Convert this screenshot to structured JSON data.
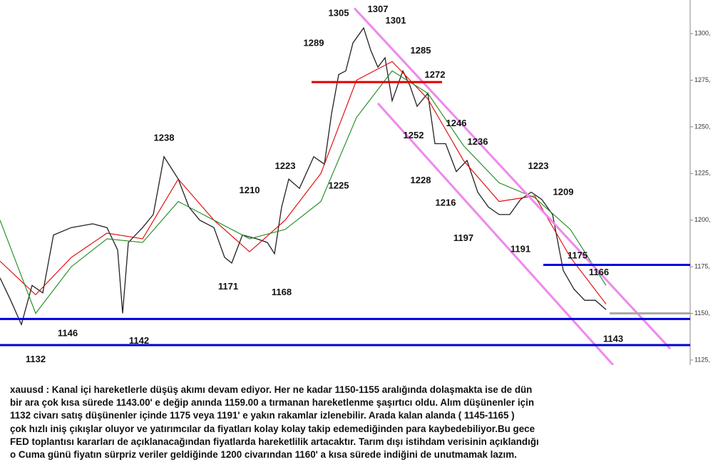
{
  "chart_data": {
    "type": "line",
    "xlim": [
      0,
      193.6
    ],
    "ylim": [
      1122.3,
      1318
    ],
    "yticks": [
      {
        "value": 1125,
        "label": "1125,"
      },
      {
        "value": 1150,
        "label": "1150,"
      },
      {
        "value": 1175,
        "label": "1175,"
      },
      {
        "value": 1200,
        "label": "1200,"
      },
      {
        "value": 1225,
        "label": "1225,"
      },
      {
        "value": 1250,
        "label": "1250,"
      },
      {
        "value": 1275,
        "label": "1275,"
      },
      {
        "value": 1300,
        "label": "1300,"
      }
    ],
    "series": [
      {
        "color": "#222222",
        "x": [
          0,
          3,
          6,
          9,
          12,
          15,
          20,
          26,
          30,
          33,
          34.4,
          36,
          40,
          43,
          46,
          50,
          53,
          56,
          60,
          63,
          65,
          68,
          72,
          75,
          77,
          79,
          81,
          84,
          88,
          91,
          93,
          95,
          97,
          99,
          102,
          104,
          106,
          108,
          110,
          113,
          115,
          117,
          120,
          122,
          125,
          128,
          131,
          134,
          137,
          140,
          143,
          146,
          149,
          152,
          155,
          158,
          161,
          164,
          167,
          170
        ],
        "values": [
          1169,
          1157,
          1144,
          1165,
          1161,
          1192,
          1196,
          1198,
          1196,
          1184,
          1150,
          1188,
          1196,
          1203,
          1234,
          1222,
          1207,
          1200,
          1196,
          1180,
          1177,
          1192,
          1190,
          1188,
          1182,
          1207,
          1222,
          1217,
          1234,
          1230,
          1257,
          1278,
          1280,
          1295,
          1303,
          1291,
          1282,
          1287,
          1264,
          1280,
          1272,
          1261,
          1268,
          1241,
          1241,
          1226,
          1232,
          1215,
          1207,
          1203,
          1203,
          1211,
          1215,
          1211,
          1203,
          1173,
          1163,
          1157,
          1157,
          1152
        ]
      },
      {
        "color": "#e00000",
        "x": [
          0,
          10,
          20,
          30,
          40,
          50,
          60,
          70,
          80,
          90,
          100,
          110,
          120,
          130,
          140,
          150,
          160,
          170
        ],
        "values": [
          1178,
          1160,
          1180,
          1193,
          1190,
          1222,
          1200,
          1183,
          1200,
          1225,
          1275,
          1285,
          1265,
          1232,
          1210,
          1213,
          1180,
          1155
        ]
      },
      {
        "color": "#1a8c1a",
        "x": [
          0,
          10,
          20,
          30,
          40,
          50,
          60,
          70,
          80,
          90,
          100,
          110,
          120,
          130,
          140,
          150,
          160,
          170
        ],
        "values": [
          1200,
          1150,
          1175,
          1190,
          1188,
          1210,
          1200,
          1190,
          1195,
          1210,
          1255,
          1280,
          1268,
          1240,
          1220,
          1212,
          1195,
          1165
        ]
      }
    ],
    "lines": [
      {
        "color": "#e8e",
        "x": [
          99.4,
          188
        ],
        "y": [
          1313.6,
          1131
        ]
      },
      {
        "color": "#e8e",
        "x": [
          106,
          172
        ],
        "y": [
          1262.6,
          1122.3
        ]
      },
      {
        "color": "#e00000",
        "x": [
          87.4,
          124
        ],
        "y": [
          1274,
          1274
        ]
      },
      {
        "color": "#0000dd",
        "x": [
          0,
          193.6
        ],
        "y": [
          1147,
          1147
        ]
      },
      {
        "color": "#0000dd",
        "x": [
          0,
          193.6
        ],
        "y": [
          1133,
          1133
        ]
      },
      {
        "color": "#0000dd",
        "x": [
          152.4,
          193.6
        ],
        "y": [
          1176,
          1176
        ]
      },
      {
        "color": "#aaaaaa",
        "x": [
          171,
          193.6
        ],
        "y": [
          1150,
          1150
        ]
      }
    ],
    "annotations": [
      {
        "x": 106,
        "value": 1307,
        "position": "above"
      },
      {
        "x": 95,
        "value": 1305,
        "position": "above"
      },
      {
        "x": 111,
        "value": 1301,
        "position": "above"
      },
      {
        "x": 88,
        "value": 1289,
        "position": "above"
      },
      {
        "x": 118,
        "value": 1285,
        "position": "above"
      },
      {
        "x": 122,
        "value": 1272,
        "position": "above"
      },
      {
        "x": 46,
        "value": 1238,
        "position": "above"
      },
      {
        "x": 116,
        "value": 1252,
        "position": "below"
      },
      {
        "x": 128,
        "value": 1246,
        "position": "above"
      },
      {
        "x": 134,
        "value": 1236,
        "position": "above"
      },
      {
        "x": 80,
        "value": 1223,
        "position": "above"
      },
      {
        "x": 95,
        "value": 1225,
        "position": "below"
      },
      {
        "x": 118,
        "value": 1228,
        "position": "below"
      },
      {
        "x": 151,
        "value": 1223,
        "position": "above"
      },
      {
        "x": 70,
        "value": 1210,
        "position": "above"
      },
      {
        "x": 158,
        "value": 1209,
        "position": "above"
      },
      {
        "x": 125,
        "value": 1216,
        "position": "below"
      },
      {
        "x": 130,
        "value": 1197,
        "position": "below"
      },
      {
        "x": 146,
        "value": 1191,
        "position": "below"
      },
      {
        "x": 162,
        "value": 1175,
        "position": "above"
      },
      {
        "x": 168,
        "value": 1166,
        "position": "above"
      },
      {
        "x": 64,
        "value": 1171,
        "position": "below"
      },
      {
        "x": 79,
        "value": 1168,
        "position": "below"
      },
      {
        "x": 19,
        "value": 1146,
        "position": "below"
      },
      {
        "x": 39,
        "value": 1142,
        "position": "below"
      },
      {
        "x": 10,
        "value": 1132,
        "position": "below"
      },
      {
        "x": 172,
        "value": 1143,
        "position": "below"
      }
    ]
  },
  "caption": [
    "xauusd : Kanal içi hareketlerle düşüş akımı devam ediyor. Her ne kadar 1150-1155 aralığında dolaşmakta ise de dün",
    "bir ara çok kısa sürede 1143.00' e değip anında 1159.00 a tırmanan hareketlenme şaşırtıcı oldu. Alım düşünenler için",
    "1132 civarı satış düşünenler içinde 1175 veya 1191' e yakın rakamlar izlenebilir. Arada kalan alanda ( 1145-1165 )",
    "çok hızlı iniş çıkışlar oluyor ve yatırımcılar da fiyatları kolay kolay takip edemediğinden para kaybedebiliyor.Bu gece",
    "FED toplantısı kararları de açıklanacağından fiyatlarda hareketlilik artacaktır. Tarım dışı istihdam verisinin açıklandığı",
    "o Cuma günü fiyatın sürpriz veriler geldiğinde 1200 civarından 1160' a kısa sürede indiğini de unutmamak lazım."
  ]
}
